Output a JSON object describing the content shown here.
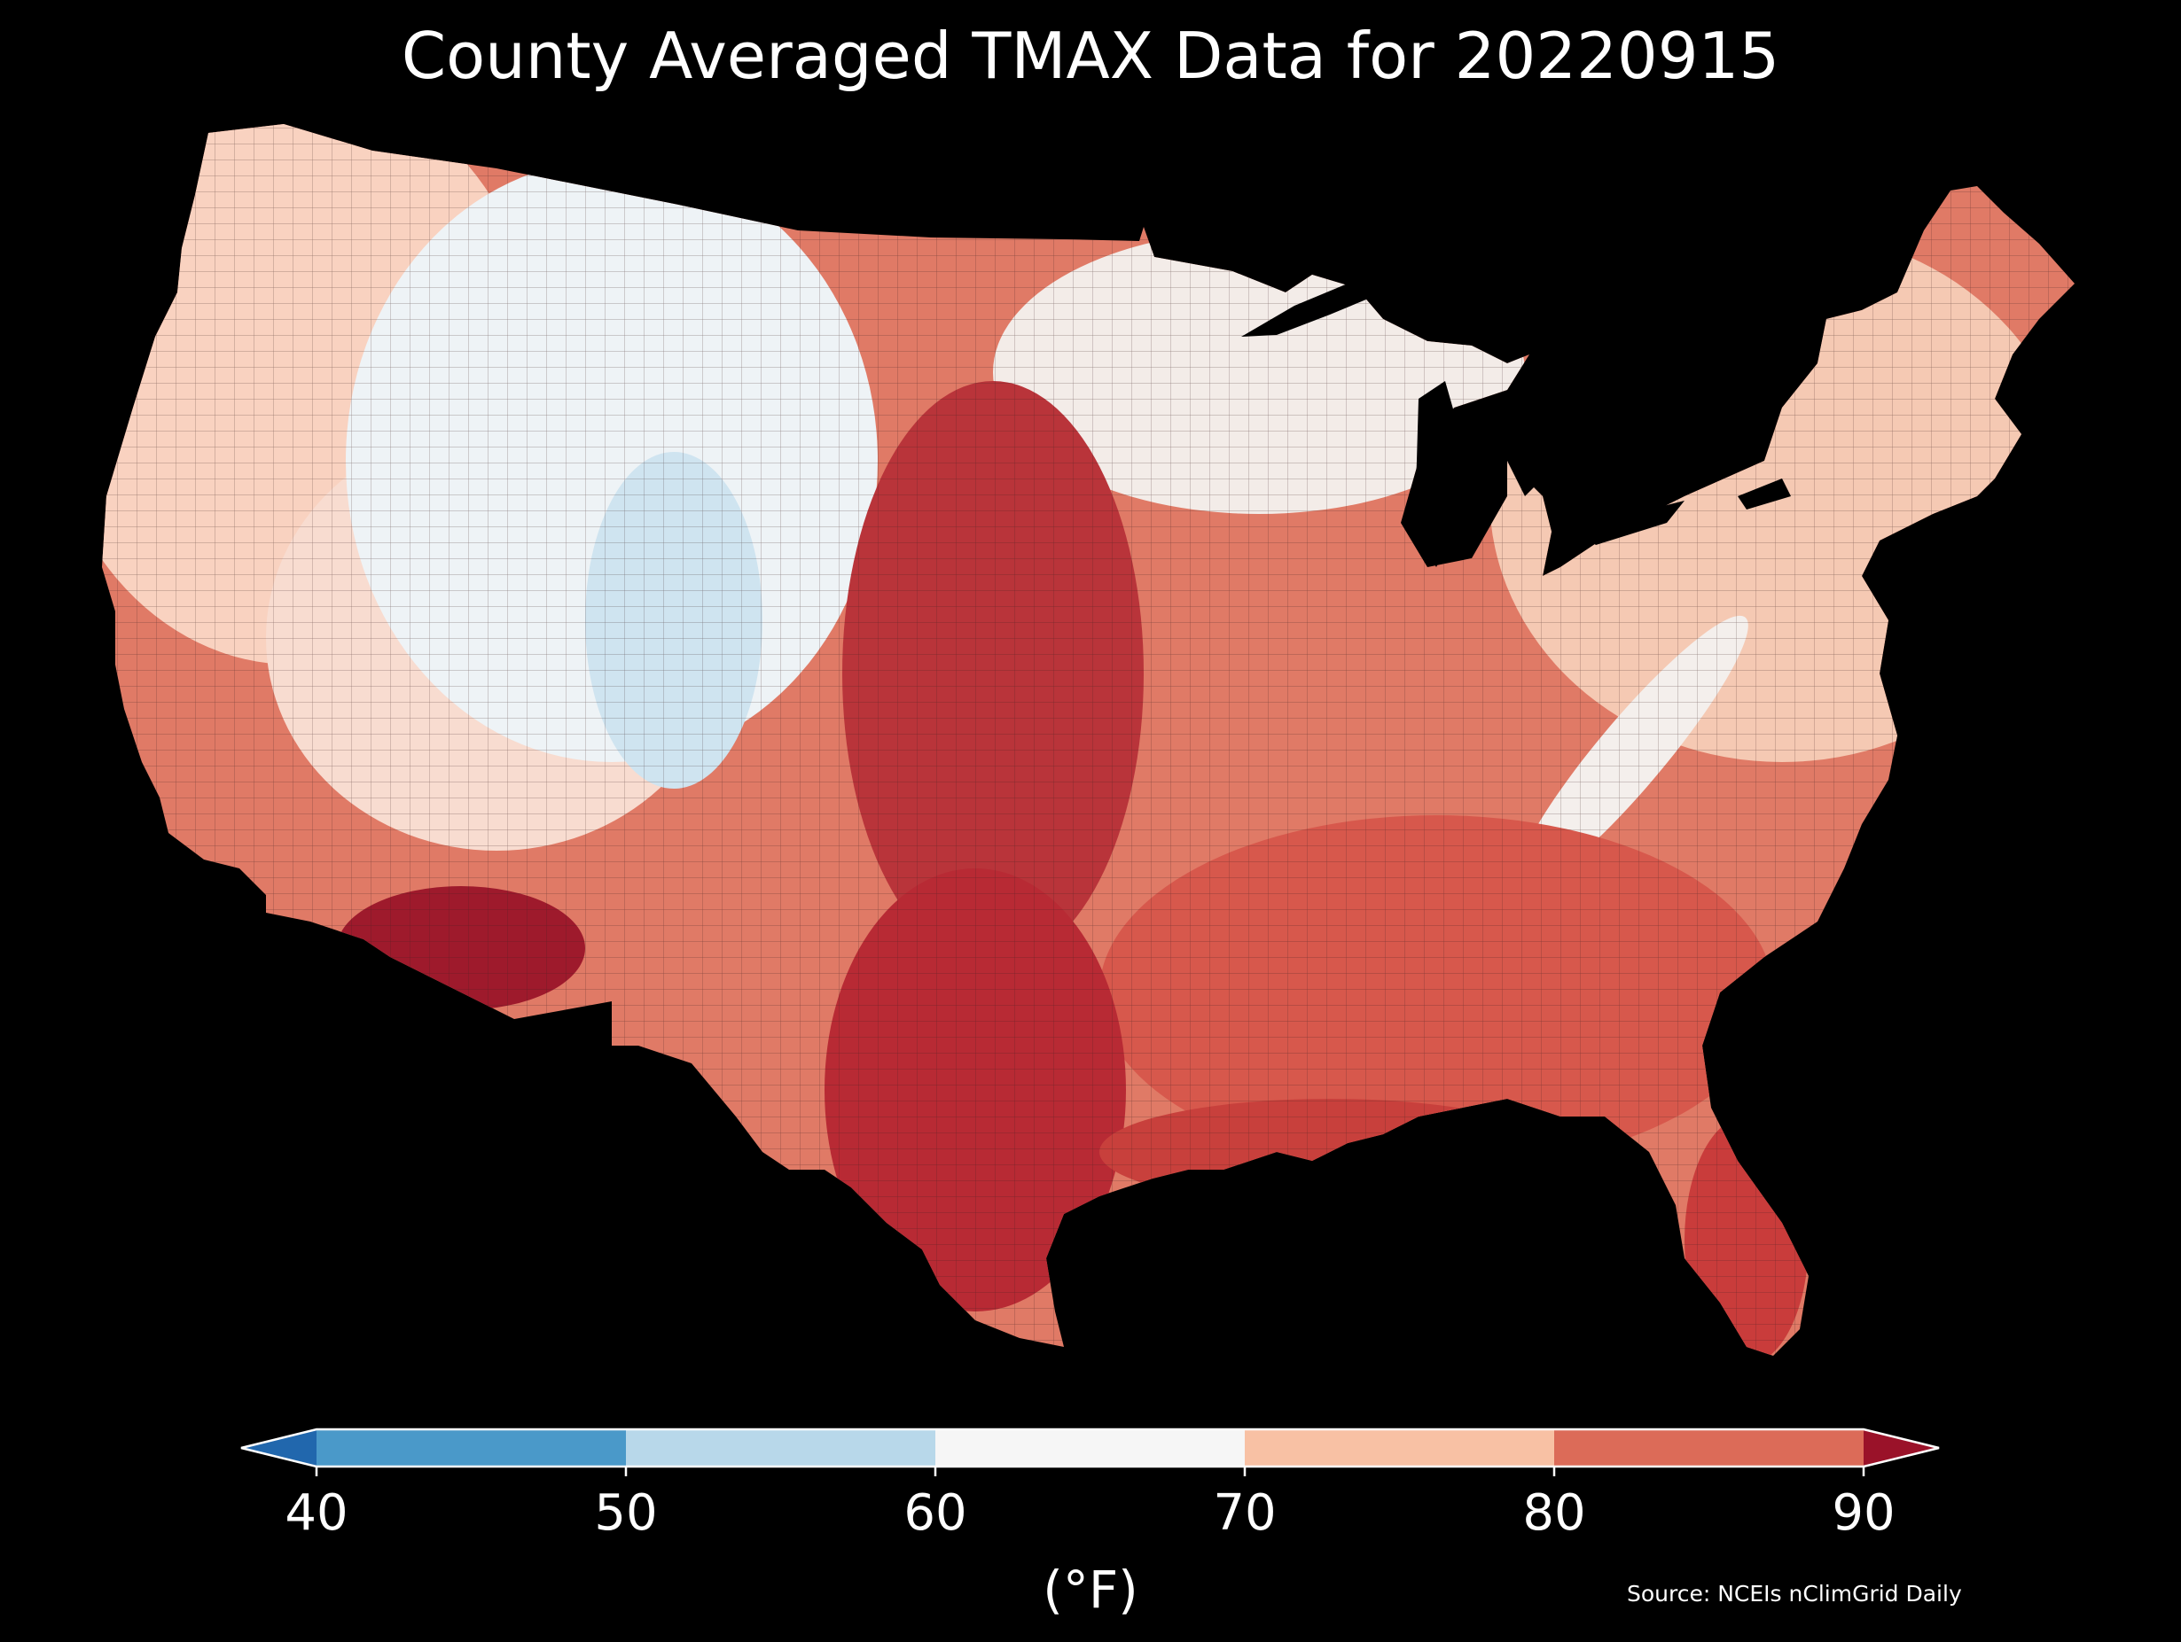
{
  "title": "County Averaged TMAX Data for 20220915",
  "colorbar": {
    "units": "(°F)",
    "ticks": [
      "40",
      "50",
      "60",
      "70",
      "80",
      "90"
    ],
    "colors": [
      "#4a99c9",
      "#b8d8ea",
      "#f6f6f6",
      "#f8c1a4",
      "#dc6b58"
    ],
    "under_color": "#2167ad",
    "over_color": "#9a1229"
  },
  "source": "Source: NCEIs nClimGrid Daily",
  "map": {
    "land_base_color": "#e07a66",
    "regions": [
      {
        "name": "pacific-northwest",
        "color": "#f9d2c0"
      },
      {
        "name": "northern-rockies",
        "color": "#eef3f6"
      },
      {
        "name": "central-rockies",
        "color": "#cfe4f0"
      },
      {
        "name": "great-basin",
        "color": "#f8dcd0"
      },
      {
        "name": "central-plains-hot",
        "color": "#b9343a"
      },
      {
        "name": "southern-plains-hot",
        "color": "#b82a34"
      },
      {
        "name": "desert-southwest",
        "color": "#9e1a2c"
      },
      {
        "name": "upper-midwest",
        "color": "#f3ece8"
      },
      {
        "name": "northeast",
        "color": "#f5c9b3"
      },
      {
        "name": "appalachians",
        "color": "#f4efec"
      },
      {
        "name": "southeast",
        "color": "#d7584c"
      },
      {
        "name": "gulf-coast",
        "color": "#c8403c"
      },
      {
        "name": "florida",
        "color": "#c93c3b"
      }
    ]
  }
}
